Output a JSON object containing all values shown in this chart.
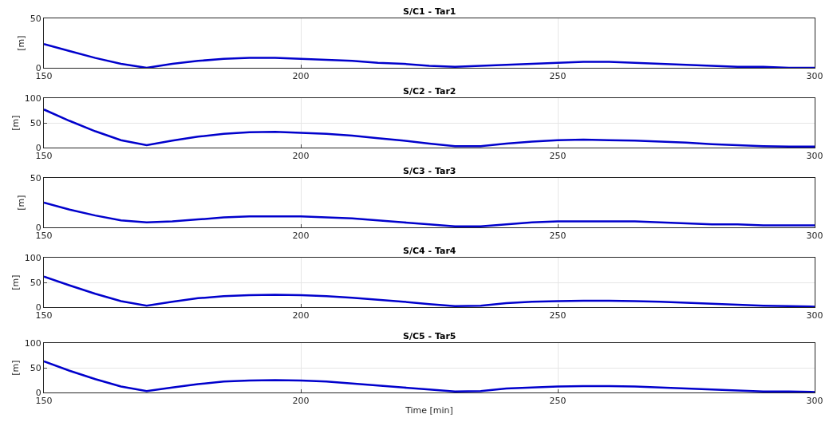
{
  "chart_data": [
    {
      "type": "line",
      "title": "S/C1 - Tar1",
      "ylabel": "[m]",
      "color": "#0000cc",
      "xlim": [
        150,
        300
      ],
      "xticks": [
        150,
        200,
        250,
        300
      ],
      "ylim": [
        0,
        50
      ],
      "yticks": [
        0,
        50
      ],
      "grid": true,
      "x": [
        150,
        155,
        160,
        165,
        170,
        175,
        180,
        185,
        190,
        195,
        200,
        205,
        210,
        215,
        220,
        225,
        230,
        235,
        240,
        245,
        250,
        255,
        260,
        265,
        270,
        275,
        280,
        285,
        290,
        295,
        300
      ],
      "values": [
        24,
        17,
        10,
        4,
        0,
        4,
        7,
        9,
        10,
        10,
        9,
        8,
        7,
        5,
        4,
        2,
        1,
        2,
        3,
        4,
        5,
        6,
        6,
        5,
        4,
        3,
        2,
        1,
        1,
        0,
        0
      ]
    },
    {
      "type": "line",
      "title": "S/C2 - Tar2",
      "ylabel": "[m]",
      "color": "#0000cc",
      "xlim": [
        150,
        300
      ],
      "xticks": [
        150,
        200,
        250,
        300
      ],
      "ylim": [
        0,
        100
      ],
      "yticks": [
        0,
        50,
        100
      ],
      "grid": true,
      "x": [
        150,
        155,
        160,
        165,
        170,
        175,
        180,
        185,
        190,
        195,
        200,
        205,
        210,
        215,
        220,
        225,
        230,
        235,
        240,
        245,
        250,
        255,
        260,
        265,
        270,
        275,
        280,
        285,
        290,
        295,
        300
      ],
      "values": [
        77,
        54,
        33,
        15,
        5,
        14,
        22,
        28,
        31,
        32,
        30,
        28,
        24,
        19,
        14,
        8,
        3,
        3,
        8,
        12,
        15,
        16,
        15,
        14,
        12,
        10,
        7,
        5,
        3,
        2,
        2
      ]
    },
    {
      "type": "line",
      "title": "S/C3 - Tar3",
      "ylabel": "[m]",
      "color": "#0000cc",
      "xlim": [
        150,
        300
      ],
      "xticks": [
        150,
        200,
        250,
        300
      ],
      "ylim": [
        0,
        50
      ],
      "yticks": [
        0,
        50
      ],
      "grid": true,
      "x": [
        150,
        155,
        160,
        165,
        170,
        175,
        180,
        185,
        190,
        195,
        200,
        205,
        210,
        215,
        220,
        225,
        230,
        235,
        240,
        245,
        250,
        255,
        260,
        265,
        270,
        275,
        280,
        285,
        290,
        295,
        300
      ],
      "values": [
        25,
        18,
        12,
        7,
        5,
        6,
        8,
        10,
        11,
        11,
        11,
        10,
        9,
        7,
        5,
        3,
        1,
        1,
        3,
        5,
        6,
        6,
        6,
        6,
        5,
        4,
        3,
        3,
        2,
        2,
        2
      ]
    },
    {
      "type": "line",
      "title": "S/C4 - Tar4",
      "ylabel": "[m]",
      "color": "#0000cc",
      "xlim": [
        150,
        300
      ],
      "xticks": [
        150,
        200,
        250,
        300
      ],
      "ylim": [
        0,
        100
      ],
      "yticks": [
        0,
        50,
        100
      ],
      "grid": true,
      "x": [
        150,
        155,
        160,
        165,
        170,
        175,
        180,
        185,
        190,
        195,
        200,
        205,
        210,
        215,
        220,
        225,
        230,
        235,
        240,
        245,
        250,
        255,
        260,
        265,
        270,
        275,
        280,
        285,
        290,
        295,
        300
      ],
      "values": [
        62,
        44,
        27,
        12,
        3,
        11,
        18,
        22,
        24,
        25,
        24,
        22,
        19,
        15,
        11,
        6,
        2,
        3,
        8,
        11,
        12,
        13,
        13,
        12,
        11,
        9,
        7,
        5,
        3,
        2,
        1
      ]
    },
    {
      "type": "line",
      "title": "S/C5 - Tar5",
      "ylabel": "[m]",
      "xlabel": "Time [min]",
      "color": "#0000cc",
      "xlim": [
        150,
        300
      ],
      "xticks": [
        150,
        200,
        250,
        300
      ],
      "ylim": [
        0,
        100
      ],
      "yticks": [
        0,
        50,
        100
      ],
      "grid": true,
      "x": [
        150,
        155,
        160,
        165,
        170,
        175,
        180,
        185,
        190,
        195,
        200,
        205,
        210,
        215,
        220,
        225,
        230,
        235,
        240,
        245,
        250,
        255,
        260,
        265,
        270,
        275,
        280,
        285,
        290,
        295,
        300
      ],
      "values": [
        63,
        44,
        27,
        12,
        3,
        10,
        17,
        22,
        24,
        25,
        24,
        22,
        18,
        14,
        10,
        6,
        2,
        3,
        8,
        10,
        12,
        13,
        13,
        12,
        10,
        8,
        6,
        4,
        2,
        2,
        1
      ]
    }
  ]
}
